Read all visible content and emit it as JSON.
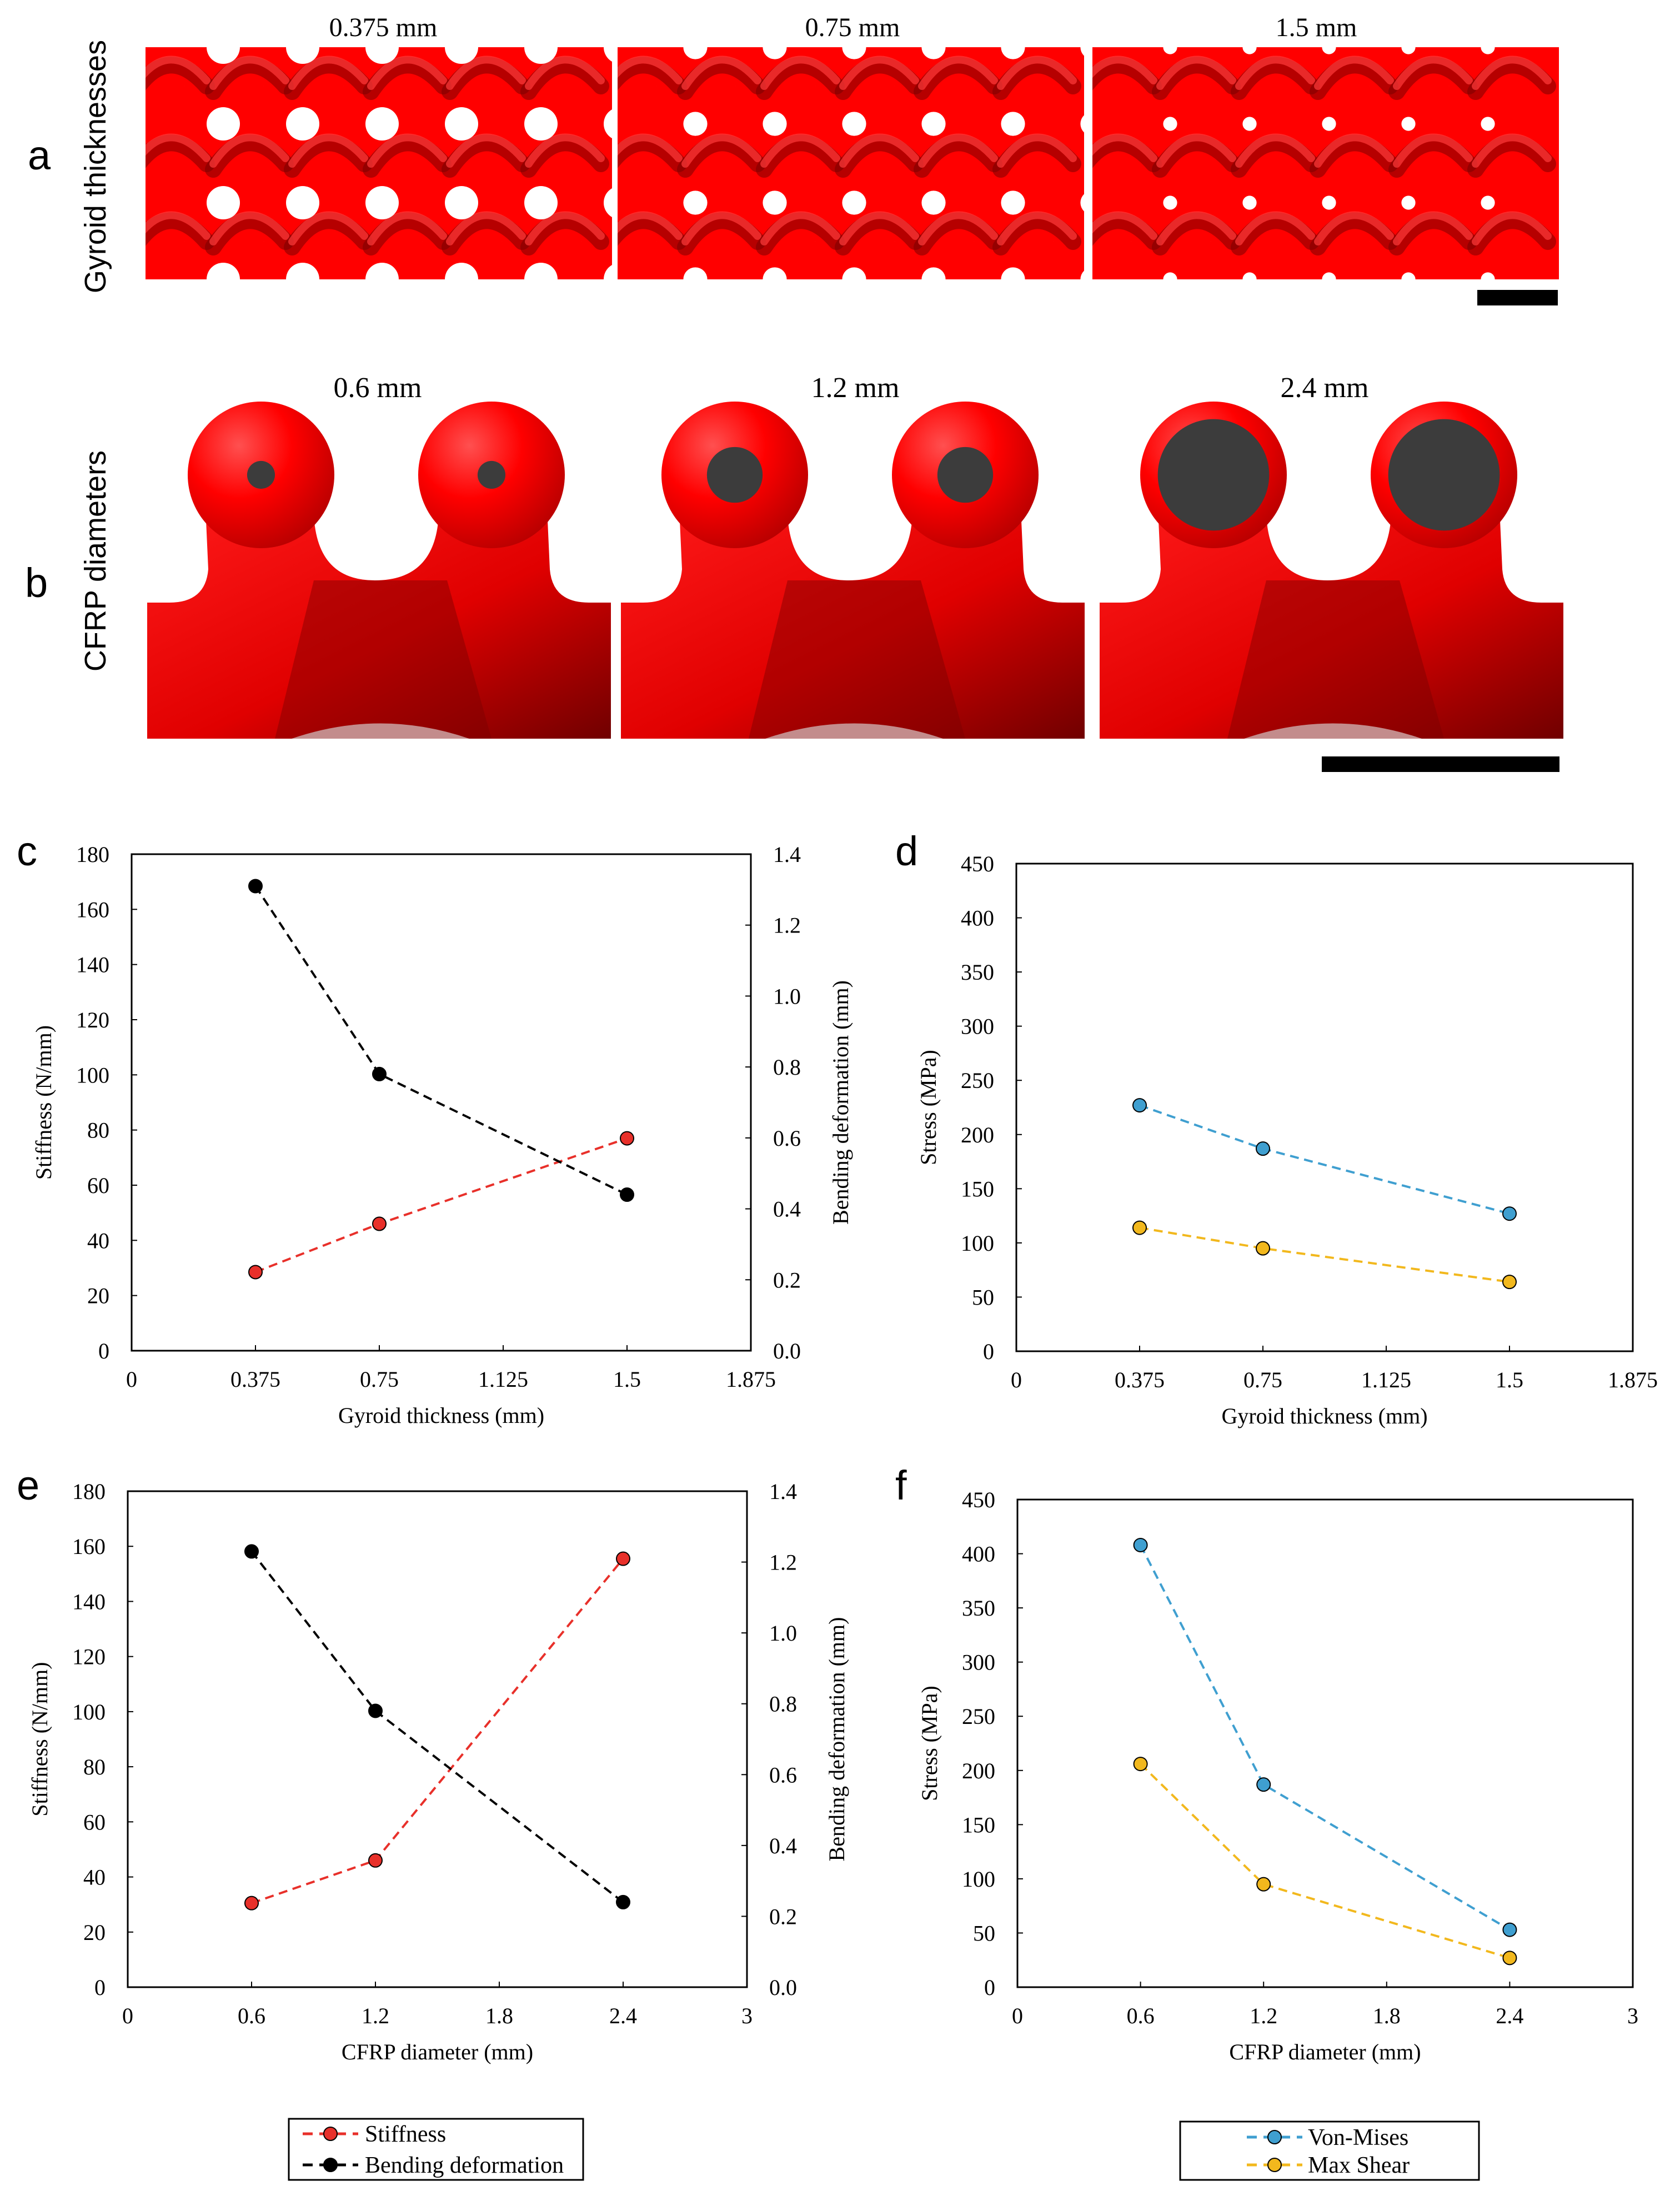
{
  "figure": {
    "panel_a": {
      "letter": "a",
      "side_label": "Gyroid thicknesses",
      "images": [
        {
          "label": "0.375 mm",
          "hole_scale": 1.0
        },
        {
          "label": "0.75 mm",
          "hole_scale": 0.72
        },
        {
          "label": "1.5 mm",
          "hole_scale": 0.42
        }
      ]
    },
    "panel_b": {
      "letter": "b",
      "side_label": "CFRP diameters",
      "images": [
        {
          "label": "0.6 mm",
          "core_fraction": 0.19
        },
        {
          "label": "1.2 mm",
          "core_fraction": 0.38
        },
        {
          "label": "2.4 mm",
          "core_fraction": 0.76
        }
      ]
    },
    "colors": {
      "lattice_red": "#ff0000",
      "lattice_dark": "#6a0000",
      "cfrp_core": "#3c3c3c",
      "stiffness": "#e8302a",
      "bending": "#000000",
      "von_mises": "#3f9fd0",
      "max_shear": "#f2b81d"
    }
  },
  "chart_data": [
    {
      "panel": "c",
      "type": "line",
      "xlabel": "Gyroid thickness (mm)",
      "ylabel": "Stiffness (N/mm)",
      "y2label": "Bending deformation (mm)",
      "xlim": [
        0,
        1.875
      ],
      "xticks": [
        "0",
        "0.375",
        "0.75",
        "1.125",
        "1.5",
        "1.875"
      ],
      "ylim": [
        0,
        180
      ],
      "yticks": [
        "0",
        "20",
        "40",
        "60",
        "80",
        "100",
        "120",
        "140",
        "160",
        "180"
      ],
      "y2lim": [
        0,
        1.4
      ],
      "y2ticks": [
        "0.0",
        "0.2",
        "0.4",
        "0.6",
        "0.8",
        "1.0",
        "1.2",
        "1.4"
      ],
      "series": [
        {
          "name": "Stiffness",
          "axis": "left",
          "color": "#e8302a",
          "x": [
            0.375,
            0.75,
            1.5
          ],
          "values": [
            28.5,
            46,
            77
          ]
        },
        {
          "name": "Bending deformation",
          "axis": "right",
          "color": "#000000",
          "x": [
            0.375,
            0.75,
            1.5
          ],
          "values": [
            1.31,
            0.78,
            0.44
          ]
        }
      ]
    },
    {
      "panel": "d",
      "type": "line",
      "xlabel": "Gyroid thickness (mm)",
      "ylabel": "Stress (MPa)",
      "xlim": [
        0,
        1.875
      ],
      "xticks": [
        "0",
        "0.375",
        "0.75",
        "1.125",
        "1.5",
        "1.875"
      ],
      "ylim": [
        0,
        450
      ],
      "yticks": [
        "0",
        "50",
        "100",
        "150",
        "200",
        "250",
        "300",
        "350",
        "400",
        "450"
      ],
      "series": [
        {
          "name": "Von-Mises",
          "color": "#3f9fd0",
          "x": [
            0.375,
            0.75,
            1.5
          ],
          "values": [
            227,
            187,
            127
          ]
        },
        {
          "name": "Max Shear",
          "color": "#f2b81d",
          "x": [
            0.375,
            0.75,
            1.5
          ],
          "values": [
            114,
            95,
            64
          ]
        }
      ]
    },
    {
      "panel": "e",
      "type": "line",
      "xlabel": "CFRP diameter (mm)",
      "ylabel": "Stiffness (N/mm)",
      "y2label": "Bending deformation (mm)",
      "xlim": [
        0,
        3
      ],
      "xticks": [
        "0",
        "0.6",
        "1.2",
        "1.8",
        "2.4",
        "3"
      ],
      "ylim": [
        0,
        180
      ],
      "yticks": [
        "0",
        "20",
        "40",
        "60",
        "80",
        "100",
        "120",
        "140",
        "160",
        "180"
      ],
      "y2lim": [
        0,
        1.4
      ],
      "y2ticks": [
        "0.0",
        "0.2",
        "0.4",
        "0.6",
        "0.8",
        "1.0",
        "1.2",
        "1.4"
      ],
      "series": [
        {
          "name": "Stiffness",
          "axis": "left",
          "color": "#e8302a",
          "x": [
            0.6,
            1.2,
            2.4
          ],
          "values": [
            30.5,
            46,
            155.5
          ]
        },
        {
          "name": "Bending deformation",
          "axis": "right",
          "color": "#000000",
          "x": [
            0.6,
            1.2,
            2.4
          ],
          "values": [
            1.23,
            0.78,
            0.24
          ]
        }
      ]
    },
    {
      "panel": "f",
      "type": "line",
      "xlabel": "CFRP diameter (mm)",
      "ylabel": "Stress (MPa)",
      "xlim": [
        0,
        3
      ],
      "xticks": [
        "0",
        "0.6",
        "1.2",
        "1.8",
        "2.4",
        "3"
      ],
      "ylim": [
        0,
        450
      ],
      "yticks": [
        "0",
        "50",
        "100",
        "150",
        "200",
        "250",
        "300",
        "350",
        "400",
        "450"
      ],
      "series": [
        {
          "name": "Von-Mises",
          "color": "#3f9fd0",
          "x": [
            0.6,
            1.2,
            2.4
          ],
          "values": [
            408,
            187,
            53
          ]
        },
        {
          "name": "Max Shear",
          "color": "#f2b81d",
          "x": [
            0.6,
            1.2,
            2.4
          ],
          "values": [
            206,
            95,
            27
          ]
        }
      ]
    }
  ],
  "legends": {
    "left": {
      "items": [
        "Stiffness",
        "Bending deformation"
      ]
    },
    "right": {
      "items": [
        "Von-Mises",
        "Max Shear"
      ]
    }
  }
}
